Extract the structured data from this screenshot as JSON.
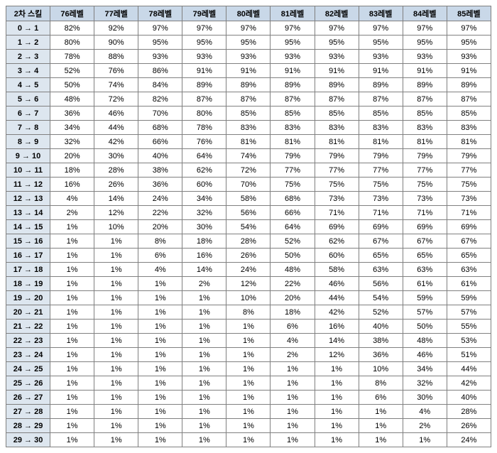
{
  "table": {
    "header_bg": "#c9d8e8",
    "rowheader_bg": "#dde6ef",
    "cell_bg": "#ffffff",
    "border_color": "#808080",
    "font_size": 11,
    "columns": [
      "2차 스킬",
      "76레벨",
      "77레벨",
      "78레벨",
      "79레벨",
      "80레벨",
      "81레벨",
      "82레벨",
      "83레벨",
      "84레벨",
      "85레벨"
    ],
    "row_labels": [
      "0 → 1",
      "1 → 2",
      "2 → 3",
      "3 → 4",
      "4 → 5",
      "5 → 6",
      "6 → 7",
      "7 → 8",
      "8 → 9",
      "9 → 10",
      "10 → 11",
      "11 → 12",
      "12 → 13",
      "13 → 14",
      "14 → 15",
      "15 → 16",
      "16 → 17",
      "17 → 18",
      "18 → 19",
      "19 → 20",
      "20 → 21",
      "21 → 22",
      "22 → 23",
      "23 → 24",
      "24 → 25",
      "25 → 26",
      "26 → 27",
      "27 → 28",
      "28 → 29",
      "29 → 30"
    ],
    "rows": [
      [
        "82%",
        "92%",
        "97%",
        "97%",
        "97%",
        "97%",
        "97%",
        "97%",
        "97%",
        "97%"
      ],
      [
        "80%",
        "90%",
        "95%",
        "95%",
        "95%",
        "95%",
        "95%",
        "95%",
        "95%",
        "95%"
      ],
      [
        "78%",
        "88%",
        "93%",
        "93%",
        "93%",
        "93%",
        "93%",
        "93%",
        "93%",
        "93%"
      ],
      [
        "52%",
        "76%",
        "86%",
        "91%",
        "91%",
        "91%",
        "91%",
        "91%",
        "91%",
        "91%"
      ],
      [
        "50%",
        "74%",
        "84%",
        "89%",
        "89%",
        "89%",
        "89%",
        "89%",
        "89%",
        "89%"
      ],
      [
        "48%",
        "72%",
        "82%",
        "87%",
        "87%",
        "87%",
        "87%",
        "87%",
        "87%",
        "87%"
      ],
      [
        "36%",
        "46%",
        "70%",
        "80%",
        "85%",
        "85%",
        "85%",
        "85%",
        "85%",
        "85%"
      ],
      [
        "34%",
        "44%",
        "68%",
        "78%",
        "83%",
        "83%",
        "83%",
        "83%",
        "83%",
        "83%"
      ],
      [
        "32%",
        "42%",
        "66%",
        "76%",
        "81%",
        "81%",
        "81%",
        "81%",
        "81%",
        "81%"
      ],
      [
        "20%",
        "30%",
        "40%",
        "64%",
        "74%",
        "79%",
        "79%",
        "79%",
        "79%",
        "79%"
      ],
      [
        "18%",
        "28%",
        "38%",
        "62%",
        "72%",
        "77%",
        "77%",
        "77%",
        "77%",
        "77%"
      ],
      [
        "16%",
        "26%",
        "36%",
        "60%",
        "70%",
        "75%",
        "75%",
        "75%",
        "75%",
        "75%"
      ],
      [
        "4%",
        "14%",
        "24%",
        "34%",
        "58%",
        "68%",
        "73%",
        "73%",
        "73%",
        "73%"
      ],
      [
        "2%",
        "12%",
        "22%",
        "32%",
        "56%",
        "66%",
        "71%",
        "71%",
        "71%",
        "71%"
      ],
      [
        "1%",
        "10%",
        "20%",
        "30%",
        "54%",
        "64%",
        "69%",
        "69%",
        "69%",
        "69%"
      ],
      [
        "1%",
        "1%",
        "8%",
        "18%",
        "28%",
        "52%",
        "62%",
        "67%",
        "67%",
        "67%"
      ],
      [
        "1%",
        "1%",
        "6%",
        "16%",
        "26%",
        "50%",
        "60%",
        "65%",
        "65%",
        "65%"
      ],
      [
        "1%",
        "1%",
        "4%",
        "14%",
        "24%",
        "48%",
        "58%",
        "63%",
        "63%",
        "63%"
      ],
      [
        "1%",
        "1%",
        "1%",
        "2%",
        "12%",
        "22%",
        "46%",
        "56%",
        "61%",
        "61%"
      ],
      [
        "1%",
        "1%",
        "1%",
        "1%",
        "10%",
        "20%",
        "44%",
        "54%",
        "59%",
        "59%"
      ],
      [
        "1%",
        "1%",
        "1%",
        "1%",
        "8%",
        "18%",
        "42%",
        "52%",
        "57%",
        "57%"
      ],
      [
        "1%",
        "1%",
        "1%",
        "1%",
        "1%",
        "6%",
        "16%",
        "40%",
        "50%",
        "55%"
      ],
      [
        "1%",
        "1%",
        "1%",
        "1%",
        "1%",
        "4%",
        "14%",
        "38%",
        "48%",
        "53%"
      ],
      [
        "1%",
        "1%",
        "1%",
        "1%",
        "1%",
        "2%",
        "12%",
        "36%",
        "46%",
        "51%"
      ],
      [
        "1%",
        "1%",
        "1%",
        "1%",
        "1%",
        "1%",
        "1%",
        "10%",
        "34%",
        "44%"
      ],
      [
        "1%",
        "1%",
        "1%",
        "1%",
        "1%",
        "1%",
        "1%",
        "8%",
        "32%",
        "42%"
      ],
      [
        "1%",
        "1%",
        "1%",
        "1%",
        "1%",
        "1%",
        "1%",
        "6%",
        "30%",
        "40%"
      ],
      [
        "1%",
        "1%",
        "1%",
        "1%",
        "1%",
        "1%",
        "1%",
        "1%",
        "4%",
        "28%"
      ],
      [
        "1%",
        "1%",
        "1%",
        "1%",
        "1%",
        "1%",
        "1%",
        "1%",
        "2%",
        "26%"
      ],
      [
        "1%",
        "1%",
        "1%",
        "1%",
        "1%",
        "1%",
        "1%",
        "1%",
        "1%",
        "24%"
      ]
    ]
  }
}
